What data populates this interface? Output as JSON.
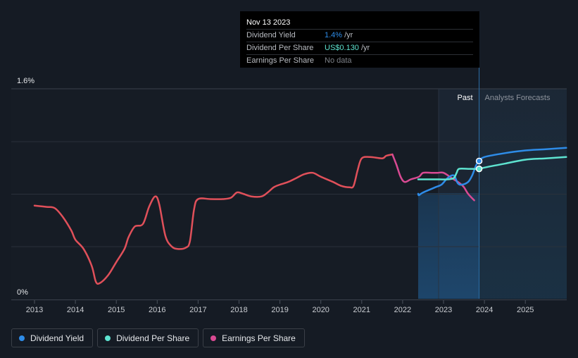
{
  "chart_data": {
    "type": "line",
    "title": "",
    "x_unit": "year",
    "x_ticks": [
      "2013",
      "2014",
      "2015",
      "2016",
      "2017",
      "2018",
      "2019",
      "2020",
      "2021",
      "2022",
      "2023",
      "2024",
      "2025"
    ],
    "xlim": [
      2012.45,
      2026.0
    ],
    "ylim": [
      0,
      1.6
    ],
    "y_tick_labels": [
      "0%",
      "1.6%"
    ],
    "gridlines_y": [
      0.4,
      0.8,
      1.2
    ],
    "past_label": "Past",
    "forecast_label": "Analysts Forecasts",
    "past_end_x": 2023.87,
    "highlight_start_x": 2022.38,
    "past_shade_start_x": 2022.88,
    "series": [
      {
        "name": "Earnings Per Share",
        "color": "#e0505a",
        "points": [
          [
            2013.0,
            0.71
          ],
          [
            2013.3,
            0.7
          ],
          [
            2013.5,
            0.69
          ],
          [
            2013.7,
            0.62
          ],
          [
            2013.9,
            0.52
          ],
          [
            2014.0,
            0.45
          ],
          [
            2014.2,
            0.38
          ],
          [
            2014.4,
            0.25
          ],
          [
            2014.5,
            0.13
          ],
          [
            2014.6,
            0.12
          ],
          [
            2014.8,
            0.18
          ],
          [
            2015.0,
            0.28
          ],
          [
            2015.2,
            0.38
          ],
          [
            2015.3,
            0.47
          ],
          [
            2015.45,
            0.55
          ],
          [
            2015.65,
            0.57
          ],
          [
            2015.8,
            0.7
          ],
          [
            2015.95,
            0.78
          ],
          [
            2016.05,
            0.72
          ],
          [
            2016.2,
            0.48
          ],
          [
            2016.35,
            0.4
          ],
          [
            2016.5,
            0.38
          ],
          [
            2016.7,
            0.39
          ],
          [
            2016.8,
            0.44
          ],
          [
            2016.9,
            0.68
          ],
          [
            2017.0,
            0.76
          ],
          [
            2017.3,
            0.76
          ],
          [
            2017.6,
            0.76
          ],
          [
            2017.8,
            0.77
          ],
          [
            2017.95,
            0.81
          ],
          [
            2018.1,
            0.8
          ],
          [
            2018.3,
            0.78
          ],
          [
            2018.55,
            0.78
          ],
          [
            2018.7,
            0.81
          ],
          [
            2018.85,
            0.85
          ],
          [
            2019.0,
            0.87
          ],
          [
            2019.2,
            0.89
          ],
          [
            2019.4,
            0.92
          ],
          [
            2019.6,
            0.95
          ],
          [
            2019.8,
            0.96
          ],
          [
            2020.0,
            0.93
          ],
          [
            2020.3,
            0.89
          ],
          [
            2020.5,
            0.86
          ],
          [
            2020.7,
            0.85
          ],
          [
            2020.8,
            0.86
          ],
          [
            2020.9,
            0.98
          ],
          [
            2021.0,
            1.07
          ],
          [
            2021.2,
            1.08
          ],
          [
            2021.5,
            1.07
          ],
          [
            2021.6,
            1.09
          ],
          [
            2021.75,
            1.1
          ],
          [
            2021.85,
            1.02
          ],
          [
            2021.95,
            0.93
          ],
          [
            2022.05,
            0.89
          ],
          [
            2022.2,
            0.91
          ],
          [
            2022.4,
            0.93
          ],
          [
            2022.5,
            0.96
          ],
          [
            2022.7,
            0.96
          ],
          [
            2022.85,
            0.96
          ],
          [
            2023.0,
            0.96
          ],
          [
            2023.2,
            0.92
          ],
          [
            2023.4,
            0.88
          ],
          [
            2023.5,
            0.85
          ],
          [
            2023.6,
            0.8
          ],
          [
            2023.75,
            0.75
          ]
        ]
      },
      {
        "name": "Dividend Yield",
        "color": "#2e8ce8",
        "points": [
          [
            2022.38,
            0.8
          ],
          [
            2022.4,
            0.79
          ],
          [
            2022.5,
            0.81
          ],
          [
            2022.8,
            0.85
          ],
          [
            2022.95,
            0.87
          ],
          [
            2023.1,
            0.92
          ],
          [
            2023.25,
            0.94
          ],
          [
            2023.35,
            0.88
          ],
          [
            2023.45,
            0.87
          ],
          [
            2023.6,
            0.89
          ],
          [
            2023.7,
            0.94
          ],
          [
            2023.8,
            1.02
          ],
          [
            2023.87,
            1.05
          ],
          [
            2024.0,
            1.08
          ],
          [
            2024.5,
            1.11
          ],
          [
            2025.0,
            1.13
          ],
          [
            2025.5,
            1.14
          ],
          [
            2026.0,
            1.15
          ]
        ]
      },
      {
        "name": "Dividend Per Share",
        "color": "#5ee3d0",
        "points": [
          [
            2022.38,
            0.91
          ],
          [
            2022.6,
            0.91
          ],
          [
            2022.9,
            0.91
          ],
          [
            2023.1,
            0.91
          ],
          [
            2023.25,
            0.92
          ],
          [
            2023.32,
            0.96
          ],
          [
            2023.38,
            0.99
          ],
          [
            2023.6,
            0.99
          ],
          [
            2023.87,
            0.99
          ],
          [
            2024.0,
            1.0
          ],
          [
            2024.5,
            1.03
          ],
          [
            2025.0,
            1.06
          ],
          [
            2025.5,
            1.07
          ],
          [
            2026.0,
            1.08
          ]
        ]
      }
    ],
    "markers": [
      {
        "series": "Dividend Yield",
        "x": 2023.87,
        "y": 1.05
      },
      {
        "series": "Dividend Per Share",
        "x": 2023.87,
        "y": 0.99
      }
    ]
  },
  "tooltip": {
    "date": "Nov 13 2023",
    "rows": [
      {
        "name": "Dividend Yield",
        "value": "1.4%",
        "unit": "/yr",
        "color": "#2e8ce8"
      },
      {
        "name": "Dividend Per Share",
        "value": "US$0.130",
        "unit": "/yr",
        "color": "#5ee3d0"
      },
      {
        "name": "Earnings Per Share",
        "value": "No data",
        "unit": "",
        "color": "#7d8188"
      }
    ]
  },
  "legend": [
    {
      "label": "Dividend Yield",
      "color": "#2e8ce8"
    },
    {
      "label": "Dividend Per Share",
      "color": "#5ee3d0"
    },
    {
      "label": "Earnings Per Share",
      "color": "#d94a93"
    }
  ]
}
